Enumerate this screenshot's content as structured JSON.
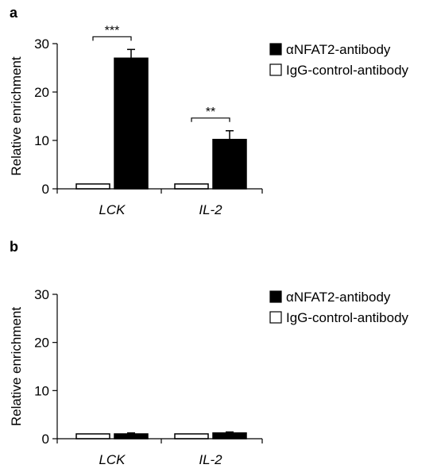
{
  "chart_data": [
    {
      "panel": "a",
      "type": "bar",
      "categories": [
        "LCK",
        "IL-2"
      ],
      "ylabel": "Relative enrichment",
      "ylim": [
        0,
        30
      ],
      "yticks": [
        "0",
        "10",
        "20",
        "30"
      ],
      "legend_position": "top-right",
      "series": [
        {
          "name": "IgG-control-antibody",
          "color": "#ffffff",
          "values": [
            1,
            1
          ],
          "errors": [
            0,
            0
          ]
        },
        {
          "name": "αNFAT2-antibody",
          "color": "#000000",
          "values": [
            27,
            10.2
          ],
          "errors": [
            1.8,
            1.8
          ]
        }
      ],
      "significance": [
        "***",
        "**"
      ]
    },
    {
      "panel": "b",
      "type": "bar",
      "categories": [
        "LCK",
        "IL-2"
      ],
      "ylabel": "Relative enrichment",
      "ylim": [
        0,
        30
      ],
      "yticks": [
        "0",
        "10",
        "20",
        "30"
      ],
      "legend_position": "top-right",
      "series": [
        {
          "name": "IgG-control-antibody",
          "color": "#ffffff",
          "values": [
            1,
            1
          ],
          "errors": [
            0,
            0
          ]
        },
        {
          "name": "αNFAT2-antibody",
          "color": "#000000",
          "values": [
            1,
            1.2
          ],
          "errors": [
            0.2,
            0.2
          ]
        }
      ],
      "significance": []
    }
  ]
}
